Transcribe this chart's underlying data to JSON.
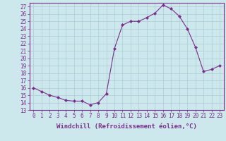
{
  "x": [
    0,
    1,
    2,
    3,
    4,
    5,
    6,
    7,
    8,
    9,
    10,
    11,
    12,
    13,
    14,
    15,
    16,
    17,
    18,
    19,
    20,
    21,
    22,
    23
  ],
  "y": [
    16,
    15.5,
    15,
    14.7,
    14.3,
    14.2,
    14.2,
    13.7,
    14.0,
    15.2,
    21.3,
    24.5,
    25.0,
    25.0,
    25.5,
    26.1,
    27.2,
    26.7,
    25.7,
    24.0,
    21.5,
    18.2,
    18.5,
    19.0
  ],
  "line_color": "#7b2d8b",
  "marker": "D",
  "marker_size": 2.0,
  "bg_color": "#cce8ec",
  "grid_color": "#aacdd2",
  "xlabel": "Windchill (Refroidissement éolien,°C)",
  "xlim": [
    -0.5,
    23.5
  ],
  "ylim": [
    13,
    27.5
  ],
  "yticks": [
    13,
    14,
    15,
    16,
    17,
    18,
    19,
    20,
    21,
    22,
    23,
    24,
    25,
    26,
    27
  ],
  "xticks": [
    0,
    1,
    2,
    3,
    4,
    5,
    6,
    7,
    8,
    9,
    10,
    11,
    12,
    13,
    14,
    15,
    16,
    17,
    18,
    19,
    20,
    21,
    22,
    23
  ],
  "xlabel_fontsize": 6.5,
  "tick_fontsize": 5.5,
  "linewidth": 0.8
}
